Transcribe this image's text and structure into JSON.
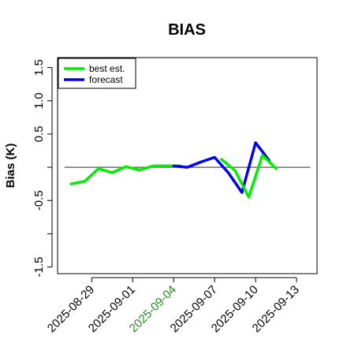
{
  "chart_data": {
    "type": "line",
    "title": "BIAS",
    "xlabel": "",
    "ylabel": "Bias (K)",
    "ylim": [
      -1.6,
      1.65
    ],
    "y_ticks": [
      -1.5,
      -1.0,
      -0.5,
      0.0,
      0.5,
      1.0,
      1.5
    ],
    "y_tick_labels": [
      "-1.5",
      "",
      "-0.5",
      "",
      "0.5",
      "1.0",
      "1.5"
    ],
    "xlim": [
      "2025-08-26 12:00",
      "2025-09-14 12:00"
    ],
    "x_ticks": [
      "2025-08-29",
      "2025-09-01",
      "2025-09-04",
      "2025-09-07",
      "2025-09-10",
      "2025-09-13"
    ],
    "x_tick_colors": [
      "#000000",
      "#000000",
      "#228B22",
      "#000000",
      "#000000",
      "#000000"
    ],
    "reference_line": 0,
    "legend_position": "top-left",
    "series": [
      {
        "name": "best est.",
        "color": "#00ee00",
        "x": [
          "2025-08-27 12:00",
          "2025-08-28 12:00",
          "2025-08-29 12:00",
          "2025-08-30 12:00",
          "2025-08-31 12:00",
          "2025-09-01 12:00",
          "2025-09-02 12:00",
          "2025-09-03 12:00",
          "2025-09-04 12:00"
        ],
        "values": [
          -0.25,
          -0.21,
          -0.02,
          -0.08,
          0.01,
          -0.04,
          0.02,
          0.02,
          0.02
        ]
      },
      {
        "name": "forecast",
        "color": "#0000ee",
        "x": [
          "2025-09-04 00:00",
          "2025-09-05 00:00",
          "2025-09-06 00:00",
          "2025-09-07 00:00",
          "2025-09-08 00:00",
          "2025-09-09 00:00",
          "2025-09-10 00:00",
          "2025-09-11 00:00"
        ],
        "values": [
          0.02,
          0.0,
          0.08,
          0.15,
          -0.08,
          -0.38,
          0.37,
          0.1
        ]
      },
      {
        "name": "",
        "color": "#00ee00",
        "x": [
          "2025-09-07 12:00",
          "2025-09-08 12:00",
          "2025-09-09 12:00",
          "2025-09-10 12:00",
          "2025-09-11 12:00"
        ],
        "values": [
          0.12,
          -0.05,
          -0.45,
          0.18,
          -0.02
        ]
      }
    ]
  }
}
